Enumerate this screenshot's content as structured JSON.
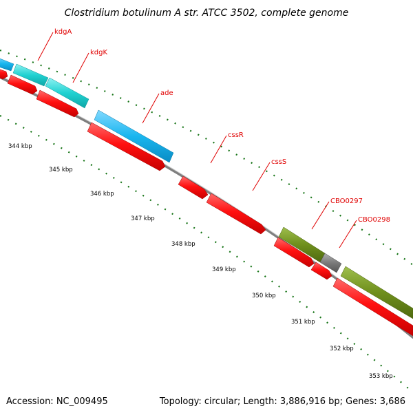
{
  "title": "Clostridium botulinum A str. ATCC 3502, complete genome",
  "footer": {
    "accession": "Accession: NC_009495",
    "summary": "Topology: circular; Length: 3,886,916 bp; Genes: 3,686"
  },
  "colors": {
    "cds_forward_red": "#ff1010",
    "cds_reverse_red": "#ff1010",
    "cyan_gene": "#20d2d2",
    "blue_gene": "#19b6ef",
    "olive_gene": "#6f8f1c",
    "gray_gene": "#7a7a7a",
    "backbone": "#8c8c8c",
    "tick_green": "#147314",
    "label_red": "#e00000"
  },
  "gene_labels": [
    "kdgA",
    "kdgK",
    "ade",
    "cssR",
    "cssS",
    "CBO0297",
    "CBO0298"
  ],
  "kbp_labels": [
    "344 kbp",
    "345 kbp",
    "346 kbp",
    "347 kbp",
    "348 kbp",
    "349 kbp",
    "350 kbp",
    "351 kbp",
    "352 kbp",
    "353 kbp"
  ]
}
